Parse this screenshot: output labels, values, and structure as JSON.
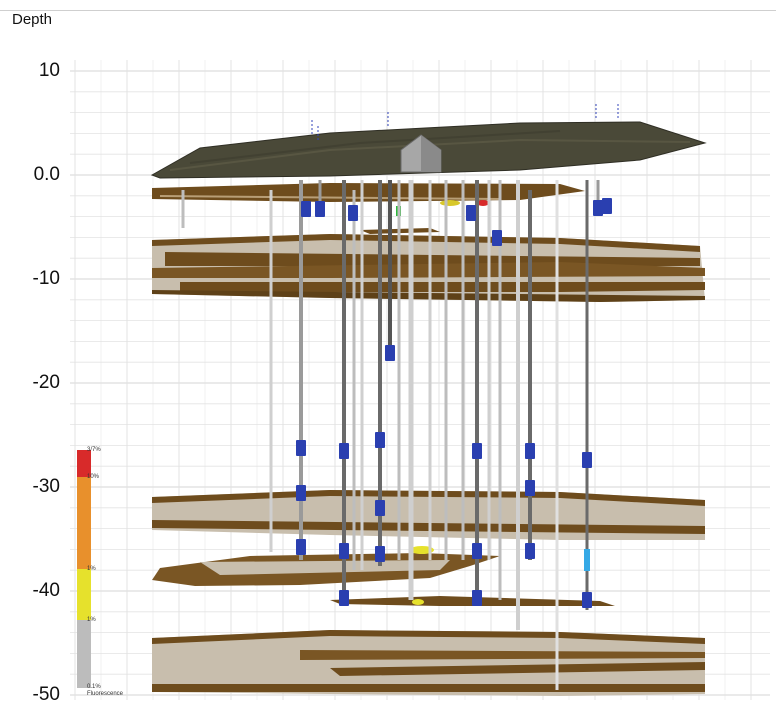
{
  "axis": {
    "title": "Depth",
    "ticks": [
      {
        "value": 10,
        "label": "10"
      },
      {
        "value": 0,
        "label": "0.0"
      },
      {
        "value": -10,
        "label": "-10"
      },
      {
        "value": -20,
        "label": "-20"
      },
      {
        "value": -30,
        "label": "-30"
      },
      {
        "value": -40,
        "label": "-40"
      },
      {
        "value": -50,
        "label": "-50"
      }
    ],
    "range": [
      -50,
      10
    ]
  },
  "legend": {
    "labels": [
      "3/7%",
      "10%",
      "1%",
      "1%",
      "0.1%",
      "Fluorescence"
    ],
    "colors": [
      "#d82a2a",
      "#e8902c",
      "#e6e12c",
      "#bcbcbc"
    ]
  },
  "colors": {
    "layer_brown": "#6b4a1c",
    "layer_tan": "#c9bfae",
    "surface": "#4b4a3a",
    "probe_blue": "#2a3fb0",
    "probe_light_blue": "#35a9e6",
    "grid": "#e3e3e3"
  }
}
